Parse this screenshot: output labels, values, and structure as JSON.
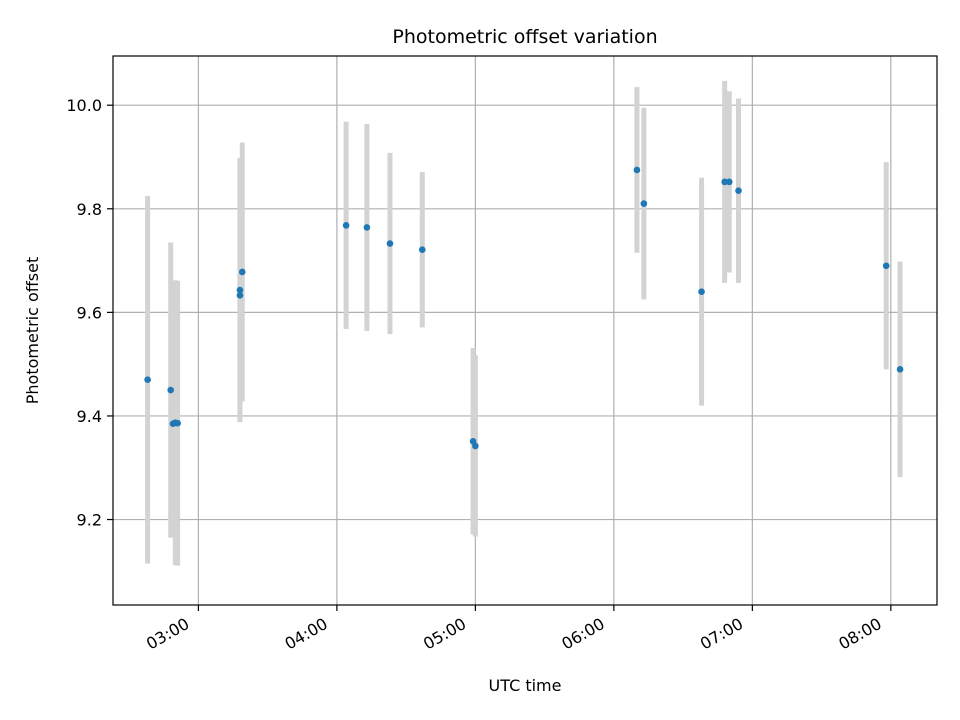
{
  "chart_data": {
    "type": "scatter",
    "title": "Photometric offset variation",
    "xlabel": "UTC time",
    "ylabel": "Photometric offset",
    "x_is_time": true,
    "xlim": [
      "02:23",
      "08:20"
    ],
    "ylim": [
      9.035,
      10.095
    ],
    "xticks": [
      "03:00",
      "04:00",
      "05:00",
      "06:00",
      "07:00",
      "08:00"
    ],
    "yticks": [
      9.2,
      9.4,
      9.6,
      9.8,
      10.0
    ],
    "ytick_labels": [
      "9.2",
      "9.4",
      "9.6",
      "9.8",
      "10.0"
    ],
    "grid": true,
    "colors": {
      "marker": "#1f77b4",
      "errorbar": "#d3d3d3",
      "grid": "#b0b0b0"
    },
    "series": [
      {
        "points": [
          {
            "x": "02:38",
            "y": 9.47,
            "err": 0.355
          },
          {
            "x": "02:48",
            "y": 9.45,
            "err": 0.285
          },
          {
            "x": "02:49",
            "y": 9.385,
            "err": 0.22
          },
          {
            "x": "02:50",
            "y": 9.387,
            "err": 0.275
          },
          {
            "x": "02:51",
            "y": 9.386,
            "err": 0.275
          },
          {
            "x": "03:18",
            "y": 9.643,
            "err": 0.255
          },
          {
            "x": "03:18",
            "y": 9.633,
            "err": 0.245
          },
          {
            "x": "03:19",
            "y": 9.678,
            "err": 0.25
          },
          {
            "x": "04:04",
            "y": 9.768,
            "err": 0.2
          },
          {
            "x": "04:13",
            "y": 9.764,
            "err": 0.2
          },
          {
            "x": "04:23",
            "y": 9.733,
            "err": 0.175
          },
          {
            "x": "04:37",
            "y": 9.721,
            "err": 0.15
          },
          {
            "x": "04:59",
            "y": 9.351,
            "err": 0.18
          },
          {
            "x": "05:00",
            "y": 9.342,
            "err": 0.175
          },
          {
            "x": "06:10",
            "y": 9.875,
            "err": 0.16
          },
          {
            "x": "06:13",
            "y": 9.81,
            "err": 0.185
          },
          {
            "x": "06:38",
            "y": 9.64,
            "err": 0.22
          },
          {
            "x": "06:48",
            "y": 9.852,
            "err": 0.195
          },
          {
            "x": "06:50",
            "y": 9.852,
            "err": 0.175
          },
          {
            "x": "06:54",
            "y": 9.835,
            "err": 0.178
          },
          {
            "x": "07:58",
            "y": 9.69,
            "err": 0.2
          },
          {
            "x": "08:04",
            "y": 9.49,
            "err": 0.208
          }
        ]
      }
    ]
  }
}
